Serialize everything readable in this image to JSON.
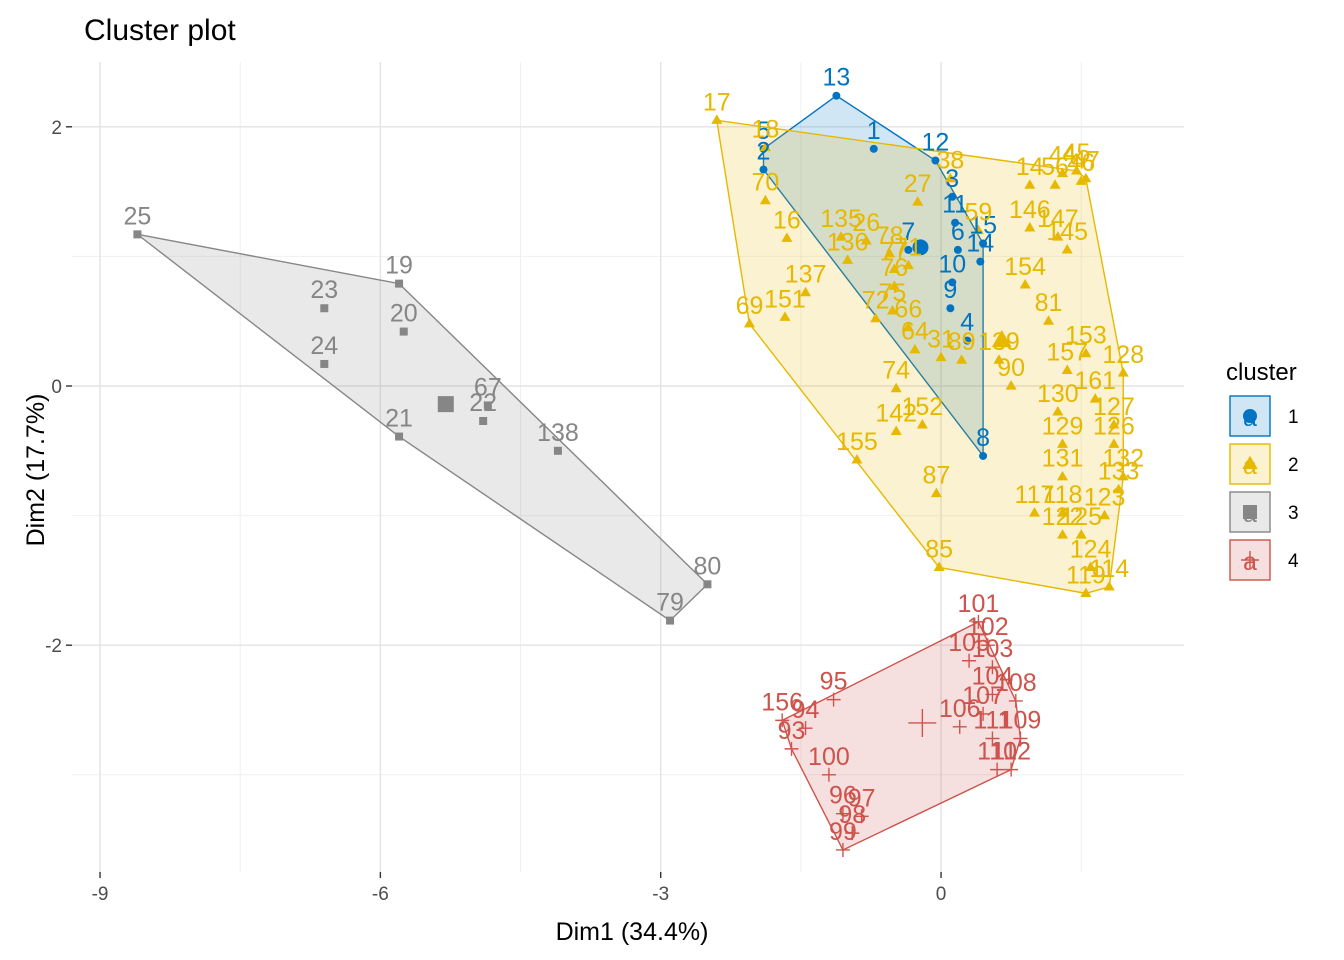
{
  "chart_data": {
    "type": "scatter",
    "title": "Cluster plot",
    "xlabel": "Dim1 (34.4%)",
    "ylabel": "Dim2 (17.7%)",
    "xlim": [
      -9.3,
      2.6
    ],
    "ylim": [
      -3.75,
      2.5
    ],
    "xticks": [
      -9,
      -6,
      -3,
      0
    ],
    "yticks": [
      -2,
      0,
      2
    ],
    "grid": true,
    "legend": {
      "title": "cluster",
      "position": "right",
      "labels": [
        "1",
        "2",
        "3",
        "4"
      ],
      "glyph": "a"
    },
    "colors": {
      "1": "#0073c2",
      "2": "#e7b800",
      "3": "#868686",
      "4": "#cd534c"
    },
    "series": [
      {
        "cluster": "1",
        "shape": "circle",
        "centroid": [
          -0.22,
          1.07
        ],
        "points": [
          {
            "label": "13",
            "x": -1.12,
            "y": 2.24
          },
          {
            "label": "1",
            "x": -0.72,
            "y": 1.83
          },
          {
            "label": "12",
            "x": -0.06,
            "y": 1.74
          },
          {
            "label": "5",
            "x": -1.9,
            "y": 1.83
          },
          {
            "label": "2",
            "x": -1.9,
            "y": 1.67
          },
          {
            "label": "3",
            "x": 0.12,
            "y": 1.46
          },
          {
            "label": "11",
            "x": 0.15,
            "y": 1.26
          },
          {
            "label": "6",
            "x": 0.18,
            "y": 1.05
          },
          {
            "label": "15",
            "x": 0.45,
            "y": 1.1
          },
          {
            "label": "14",
            "x": 0.42,
            "y": 0.96
          },
          {
            "label": "7",
            "x": -0.35,
            "y": 1.05
          },
          {
            "label": "10",
            "x": 0.12,
            "y": 0.8
          },
          {
            "label": "9",
            "x": 0.1,
            "y": 0.6
          },
          {
            "label": "4",
            "x": 0.28,
            "y": 0.35
          },
          {
            "label": "8",
            "x": 0.45,
            "y": -0.54
          }
        ]
      },
      {
        "cluster": "2",
        "shape": "triangle",
        "centroid": [
          0.65,
          0.35
        ],
        "points": [
          {
            "label": "17",
            "x": -2.4,
            "y": 2.05
          },
          {
            "label": "18",
            "x": -1.88,
            "y": 1.84
          },
          {
            "label": "38",
            "x": 0.1,
            "y": 1.6
          },
          {
            "label": "44",
            "x": 1.3,
            "y": 1.64
          },
          {
            "label": "45",
            "x": 1.45,
            "y": 1.66
          },
          {
            "label": "46",
            "x": 1.5,
            "y": 1.58
          },
          {
            "label": "47",
            "x": 1.55,
            "y": 1.6
          },
          {
            "label": "14",
            "x": 0.95,
            "y": 1.55
          },
          {
            "label": "56",
            "x": 1.22,
            "y": 1.55
          },
          {
            "label": "70",
            "x": -1.88,
            "y": 1.43
          },
          {
            "label": "27",
            "x": -0.25,
            "y": 1.42
          },
          {
            "label": "135",
            "x": -1.07,
            "y": 1.15
          },
          {
            "label": "26",
            "x": -0.8,
            "y": 1.12
          },
          {
            "label": "16",
            "x": -1.65,
            "y": 1.14
          },
          {
            "label": "78",
            "x": -0.55,
            "y": 1.02
          },
          {
            "label": "136",
            "x": -1.0,
            "y": 0.97
          },
          {
            "label": "77",
            "x": -0.5,
            "y": 0.9
          },
          {
            "label": "71",
            "x": -0.35,
            "y": 0.93
          },
          {
            "label": "59",
            "x": 0.4,
            "y": 1.2
          },
          {
            "label": "146",
            "x": 0.95,
            "y": 1.22
          },
          {
            "label": "147",
            "x": 1.25,
            "y": 1.15
          },
          {
            "label": "145",
            "x": 1.35,
            "y": 1.05
          },
          {
            "label": "154",
            "x": 0.9,
            "y": 0.78
          },
          {
            "label": "137",
            "x": -1.45,
            "y": 0.72
          },
          {
            "label": "76",
            "x": -0.5,
            "y": 0.77
          },
          {
            "label": "72",
            "x": -0.7,
            "y": 0.52
          },
          {
            "label": "75",
            "x": -0.52,
            "y": 0.58
          },
          {
            "label": "69",
            "x": -2.05,
            "y": 0.48
          },
          {
            "label": "151",
            "x": -1.67,
            "y": 0.53
          },
          {
            "label": "66",
            "x": -0.35,
            "y": 0.45
          },
          {
            "label": "64",
            "x": -0.28,
            "y": 0.28
          },
          {
            "label": "31",
            "x": 0.0,
            "y": 0.22
          },
          {
            "label": "89",
            "x": 0.22,
            "y": 0.2
          },
          {
            "label": "139",
            "x": 0.62,
            "y": 0.2
          },
          {
            "label": "90",
            "x": 0.75,
            "y": 0.0
          },
          {
            "label": "81",
            "x": 1.15,
            "y": 0.5
          },
          {
            "label": "153",
            "x": 1.55,
            "y": 0.25
          },
          {
            "label": "157",
            "x": 1.35,
            "y": 0.12
          },
          {
            "label": "128",
            "x": 1.95,
            "y": 0.1
          },
          {
            "label": "74",
            "x": -0.48,
            "y": -0.02
          },
          {
            "label": "161",
            "x": 1.65,
            "y": -0.1
          },
          {
            "label": "130",
            "x": 1.25,
            "y": -0.2
          },
          {
            "label": "127",
            "x": 1.85,
            "y": -0.3
          },
          {
            "label": "126",
            "x": 1.85,
            "y": -0.45
          },
          {
            "label": "129",
            "x": 1.3,
            "y": -0.45
          },
          {
            "label": "142",
            "x": -0.48,
            "y": -0.35
          },
          {
            "label": "152",
            "x": -0.2,
            "y": -0.3
          },
          {
            "label": "155",
            "x": -0.9,
            "y": -0.57
          },
          {
            "label": "87",
            "x": -0.05,
            "y": -0.83
          },
          {
            "label": "131",
            "x": 1.3,
            "y": -0.7
          },
          {
            "label": "132",
            "x": 1.95,
            "y": -0.7
          },
          {
            "label": "133",
            "x": 1.9,
            "y": -0.8
          },
          {
            "label": "117",
            "x": 1.0,
            "y": -0.98
          },
          {
            "label": "118",
            "x": 1.3,
            "y": -0.98
          },
          {
            "label": "123",
            "x": 1.75,
            "y": -1.0
          },
          {
            "label": "122",
            "x": 1.3,
            "y": -1.15
          },
          {
            "label": "125",
            "x": 1.5,
            "y": -1.15
          },
          {
            "label": "85",
            "x": -0.02,
            "y": -1.4
          },
          {
            "label": "124",
            "x": 1.6,
            "y": -1.4
          },
          {
            "label": "114",
            "x": 1.8,
            "y": -1.55
          },
          {
            "label": "119",
            "x": 1.55,
            "y": -1.6
          }
        ]
      },
      {
        "cluster": "3",
        "shape": "square",
        "centroid": [
          -5.3,
          -0.14
        ],
        "points": [
          {
            "label": "25",
            "x": -8.6,
            "y": 1.17
          },
          {
            "label": "19",
            "x": -5.8,
            "y": 0.79
          },
          {
            "label": "23",
            "x": -6.6,
            "y": 0.6
          },
          {
            "label": "20",
            "x": -5.75,
            "y": 0.42
          },
          {
            "label": "24",
            "x": -6.6,
            "y": 0.17
          },
          {
            "label": "67",
            "x": -4.85,
            "y": -0.15
          },
          {
            "label": "22",
            "x": -4.9,
            "y": -0.27
          },
          {
            "label": "21",
            "x": -5.8,
            "y": -0.39
          },
          {
            "label": "138",
            "x": -4.1,
            "y": -0.5
          },
          {
            "label": "80",
            "x": -2.5,
            "y": -1.53
          },
          {
            "label": "79",
            "x": -2.9,
            "y": -1.81
          }
        ]
      },
      {
        "cluster": "4",
        "shape": "plus",
        "centroid": [
          -0.2,
          -2.6
        ],
        "points": [
          {
            "label": "101",
            "x": 0.4,
            "y": -1.82
          },
          {
            "label": "102",
            "x": 0.5,
            "y": -2.0
          },
          {
            "label": "105",
            "x": 0.3,
            "y": -2.12
          },
          {
            "label": "103",
            "x": 0.55,
            "y": -2.17
          },
          {
            "label": "104",
            "x": 0.55,
            "y": -2.38
          },
          {
            "label": "107",
            "x": 0.45,
            "y": -2.53
          },
          {
            "label": "108",
            "x": 0.8,
            "y": -2.43
          },
          {
            "label": "106",
            "x": 0.2,
            "y": -2.63
          },
          {
            "label": "111",
            "x": 0.55,
            "y": -2.72
          },
          {
            "label": "109",
            "x": 0.85,
            "y": -2.72
          },
          {
            "label": "110",
            "x": 0.6,
            "y": -2.96
          },
          {
            "label": "112",
            "x": 0.75,
            "y": -2.96
          },
          {
            "label": "95",
            "x": -1.15,
            "y": -2.42
          },
          {
            "label": "156",
            "x": -1.7,
            "y": -2.58
          },
          {
            "label": "94",
            "x": -1.45,
            "y": -2.64
          },
          {
            "label": "93",
            "x": -1.6,
            "y": -2.8
          },
          {
            "label": "100",
            "x": -1.2,
            "y": -3.0
          },
          {
            "label": "96",
            "x": -1.05,
            "y": -3.3
          },
          {
            "label": "97",
            "x": -0.85,
            "y": -3.32
          },
          {
            "label": "98",
            "x": -0.95,
            "y": -3.45
          },
          {
            "label": "99",
            "x": -1.05,
            "y": -3.58
          }
        ]
      }
    ]
  }
}
